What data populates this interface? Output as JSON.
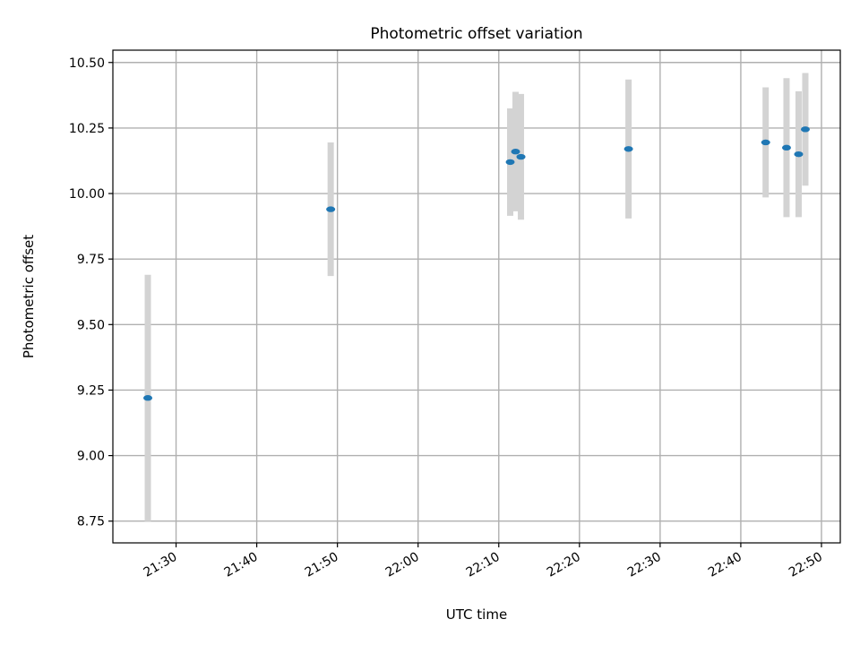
{
  "chart_data": {
    "type": "scatter",
    "title": "Photometric offset variation",
    "xlabel": "UTC time",
    "ylabel": "Photometric offset",
    "xlim": [
      "21:22:10",
      "22:52:20"
    ],
    "ylim": [
      8.667,
      10.547
    ],
    "grid": true,
    "x_ticks": [
      "21:30",
      "21:40",
      "21:50",
      "22:00",
      "22:10",
      "22:20",
      "22:30",
      "22:40",
      "22:50"
    ],
    "y_ticks": [
      "8.75",
      "9.00",
      "9.25",
      "9.50",
      "9.75",
      "10.00",
      "10.25",
      "10.50"
    ],
    "series": [
      {
        "marker_color": "#1f77b4",
        "errorbar_color": "#d3d3d3",
        "points": [
          {
            "x": "21:26:30",
            "y": 9.22,
            "yerr": 0.47
          },
          {
            "x": "21:49:10",
            "y": 9.94,
            "yerr": 0.255
          },
          {
            "x": "22:11:25",
            "y": 10.12,
            "yerr": 0.205
          },
          {
            "x": "22:12:05",
            "y": 10.16,
            "yerr": 0.228
          },
          {
            "x": "22:12:45",
            "y": 10.14,
            "yerr": 0.24
          },
          {
            "x": "22:26:05",
            "y": 10.17,
            "yerr": 0.265
          },
          {
            "x": "22:43:05",
            "y": 10.195,
            "yerr": 0.21
          },
          {
            "x": "22:45:40",
            "y": 10.175,
            "yerr": 0.265
          },
          {
            "x": "22:47:10",
            "y": 10.15,
            "yerr": 0.24
          },
          {
            "x": "22:48:00",
            "y": 10.245,
            "yerr": 0.215
          }
        ]
      }
    ]
  }
}
